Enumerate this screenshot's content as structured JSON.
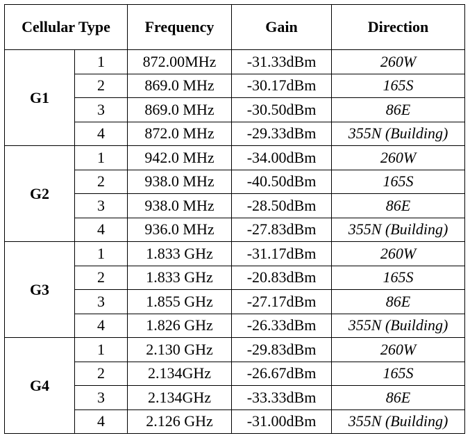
{
  "table": {
    "header": [
      "Cellular Type",
      "Frequency",
      "Gain",
      "Direction"
    ],
    "groups": [
      {
        "name": "G1",
        "rows": [
          [
            "1",
            "872.00MHz",
            "-31.33dBm",
            "260W"
          ],
          [
            "2",
            "869.0 MHz",
            "-30.17dBm",
            "165S"
          ],
          [
            "3",
            "869.0 MHz",
            "-30.50dBm",
            "86E"
          ],
          [
            "4",
            "872.0 MHz",
            "-29.33dBm",
            "355N (Building)"
          ]
        ]
      },
      {
        "name": "G2",
        "rows": [
          [
            "1",
            "942.0 MHz",
            "-34.00dBm",
            "260W"
          ],
          [
            "2",
            "938.0 MHz",
            "-40.50dBm",
            "165S"
          ],
          [
            "3",
            "938.0 MHz",
            "-28.50dBm",
            "86E"
          ],
          [
            "4",
            "936.0 MHz",
            "-27.83dBm",
            "355N (Building)"
          ]
        ]
      },
      {
        "name": "G3",
        "rows": [
          [
            "1",
            "1.833 GHz",
            "-31.17dBm",
            "260W"
          ],
          [
            "2",
            "1.833 GHz",
            "-20.83dBm",
            "165S"
          ],
          [
            "3",
            "1.855 GHz",
            "-27.17dBm",
            "86E"
          ],
          [
            "4",
            "1.826 GHz",
            "-26.33dBm",
            "355N (Building)"
          ]
        ]
      },
      {
        "name": "G4",
        "rows": [
          [
            "1",
            "2.130 GHz",
            "-29.83dBm",
            "260W"
          ],
          [
            "2",
            "2.134GHz",
            "-26.67dBm",
            "165S"
          ],
          [
            "3",
            "2.134GHz",
            "-33.33dBm",
            "86E"
          ],
          [
            "4",
            "2.126 GHz",
            "-31.00dBm",
            "355N (Building)"
          ]
        ]
      }
    ]
  }
}
